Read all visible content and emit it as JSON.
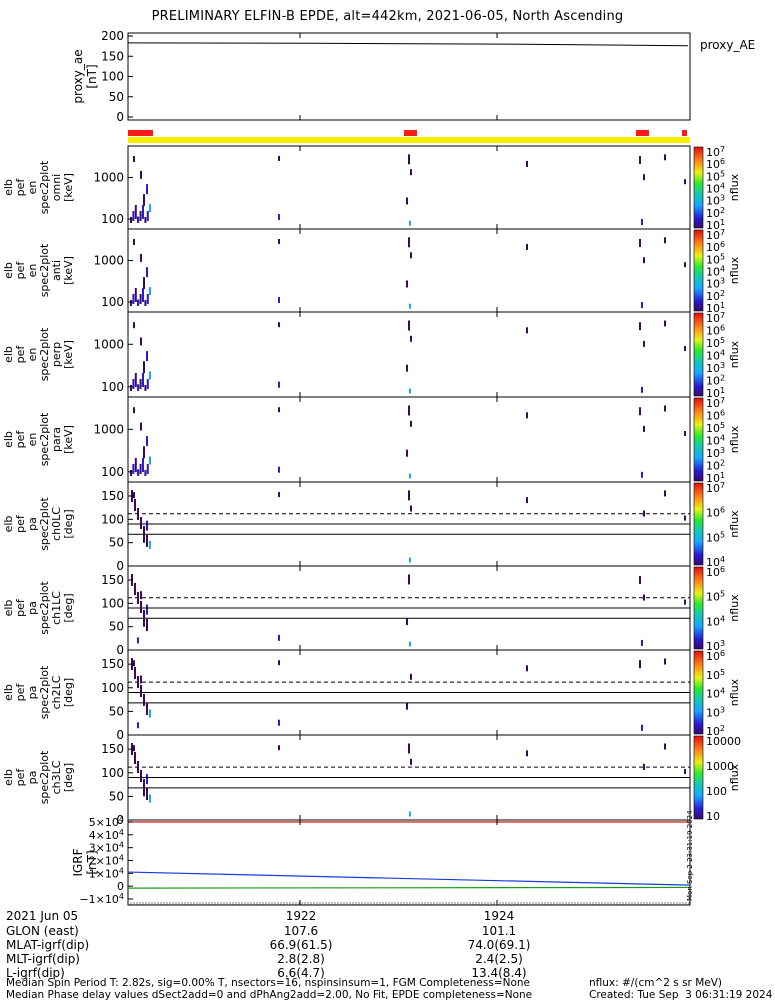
{
  "title": "PRELIMINARY ELFIN-B EPDE, alt=442km, 2021-06-05, North Ascending",
  "colors": {
    "frame": "#000000",
    "status_bar": "#ffee00",
    "status_flag": "#ff1a1a",
    "igrf_bx": "#1a3bd6",
    "igrf_by": "#1a9b1a",
    "igrf_bz": "#d01a1a"
  },
  "status_flags": [
    "red",
    "yellow"
  ],
  "footer": {
    "date": "2021 Jun 05",
    "rows": [
      "GLON (east)",
      "MLAT-igrf(dip)",
      "MLT-igrf(dip)",
      "L-igrf(dip)"
    ],
    "columns": [
      {
        "time": "1922",
        "values": [
          "107.6",
          "66.9(61.5)",
          "2.8(2.8)",
          "6.6(4.7)"
        ]
      },
      {
        "time": "1924",
        "values": [
          "101.1",
          "74.0(69.1)",
          "2.4(2.5)",
          "13.4(8.4)"
        ]
      }
    ],
    "note_left_1": "Median Spin Period T: 2.82s, sig=0.00% T, nsectors=16, nspinsinsum=1, FGM Completeness=None",
    "note_left_2": "Median Phase delay values dSect2add=0 and dPhAng2add=2.00, No Fit, EPDE completeness=None",
    "note_right_1": "nflux: #/(cm^2 s sr MeV)",
    "note_right_2": "Created: Tue Sep  3 06:31:19 2024",
    "side_stamp": "Mon Sep  2 23:31:19 2024"
  },
  "chart_data": [
    {
      "type": "line",
      "ylabel": "proxy_ae [nT]",
      "legend": "proxy_AE",
      "ylim": [
        0,
        200
      ],
      "yticks": [
        "200",
        "150",
        "100",
        "50",
        "0"
      ],
      "x": [
        "2021-06-05 19:20:50",
        "2021-06-05 19:23:40",
        "2021-06-05 19:25:30",
        "2021-06-05 19:26:20"
      ],
      "series": [
        {
          "name": "proxy_AE",
          "values": [
            183,
            182,
            180,
            176
          ]
        }
      ]
    },
    {
      "type": "heatmap",
      "ylabel": "elb pef en spec2plot omni [keV]",
      "scale": "log",
      "yticks": [
        "1000",
        "100"
      ],
      "colorbar_label": "nflux",
      "colorbar_ticks": [
        "10^7",
        "10^6",
        "10^5",
        "10^4",
        "10^3",
        "10^2",
        "10^1"
      ]
    },
    {
      "type": "heatmap",
      "ylabel": "elb pef en spec2plot anti [keV]",
      "scale": "log",
      "yticks": [
        "1000",
        "100"
      ],
      "colorbar_label": "nflux",
      "colorbar_ticks": [
        "10^7",
        "10^6",
        "10^5",
        "10^4",
        "10^3",
        "10^2",
        "10^1"
      ]
    },
    {
      "type": "heatmap",
      "ylabel": "elb pef en spec2plot perp [keV]",
      "scale": "log",
      "yticks": [
        "1000",
        "100"
      ],
      "colorbar_label": "nflux",
      "colorbar_ticks": [
        "10^7",
        "10^6",
        "10^5",
        "10^4",
        "10^3",
        "10^2",
        "10^1"
      ]
    },
    {
      "type": "heatmap",
      "ylabel": "elb pef en spec2plot para [keV]",
      "scale": "log",
      "yticks": [
        "1000",
        "100"
      ],
      "colorbar_label": "nflux",
      "colorbar_ticks": [
        "10^7",
        "10^6",
        "10^5",
        "10^4",
        "10^3",
        "10^2",
        "10^1"
      ]
    },
    {
      "type": "heatmap",
      "ylabel": "elb pef pa spec2plot ch0LC [deg]",
      "ylim": [
        0,
        180
      ],
      "yticks": [
        "150",
        "100",
        "50",
        "0"
      ],
      "colorbar_label": "nflux",
      "colorbar_ticks": [
        "10^7",
        "10^6",
        "10^5",
        "10^4"
      ]
    },
    {
      "type": "heatmap",
      "ylabel": "elb pef pa spec2plot ch1LC [deg]",
      "ylim": [
        0,
        180
      ],
      "yticks": [
        "150",
        "100",
        "50",
        "0"
      ],
      "colorbar_label": "nflux",
      "colorbar_ticks": [
        "10^6",
        "10^5",
        "10^4",
        "10^3"
      ]
    },
    {
      "type": "heatmap",
      "ylabel": "elb pef pa spec2plot ch2LC [deg]",
      "ylim": [
        0,
        180
      ],
      "yticks": [
        "150",
        "100",
        "50",
        "0"
      ],
      "colorbar_label": "nflux",
      "colorbar_ticks": [
        "10^6",
        "10^5",
        "10^4",
        "10^3",
        "10^2"
      ]
    },
    {
      "type": "heatmap",
      "ylabel": "elb pef pa spec2plot ch3LC [deg]",
      "ylim": [
        0,
        180
      ],
      "yticks": [
        "150",
        "100",
        "50",
        "0"
      ],
      "colorbar_label": "nflux",
      "colorbar_ticks": [
        "10000",
        "1000",
        "100",
        "10"
      ]
    },
    {
      "type": "line",
      "ylabel": "IGRF [nT]",
      "ylim": [
        -10000,
        50000
      ],
      "yticks": [
        "5×10^4",
        "4×10^4",
        "3×10^4",
        "2×10^4",
        "1×10^4",
        "0",
        "−1×10^4"
      ],
      "x": [
        "19:20:50",
        "19:26:20"
      ],
      "series": [
        {
          "values": [
            11000,
            800
          ]
        },
        {
          "values": [
            -1500,
            -1000
          ]
        },
        {
          "values": [
            50000,
            50000
          ]
        }
      ]
    }
  ]
}
